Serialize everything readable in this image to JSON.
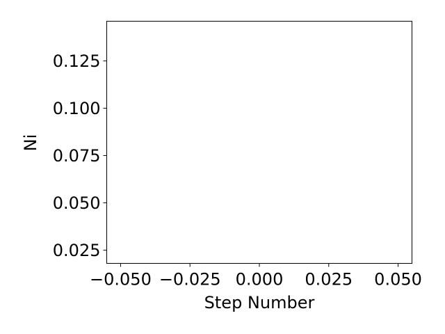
{
  "chart_data": {
    "type": "line",
    "title": "",
    "xlabel": "Step Number",
    "ylabel": "Ni",
    "xlim": [
      -0.055,
      0.055
    ],
    "ylim": [
      0.018,
      0.146
    ],
    "xticks": [
      -0.05,
      -0.025,
      0.0,
      0.025,
      0.05
    ],
    "xtick_labels": [
      "−0.050",
      "−0.025",
      "0.000",
      "0.025",
      "0.050"
    ],
    "yticks": [
      0.025,
      0.05,
      0.075,
      0.1,
      0.125
    ],
    "ytick_labels": [
      "0.025",
      "0.050",
      "0.075",
      "0.100",
      "0.125"
    ],
    "grid": false,
    "series": []
  },
  "colors": {
    "axes": "#000000",
    "background": "#ffffff"
  }
}
